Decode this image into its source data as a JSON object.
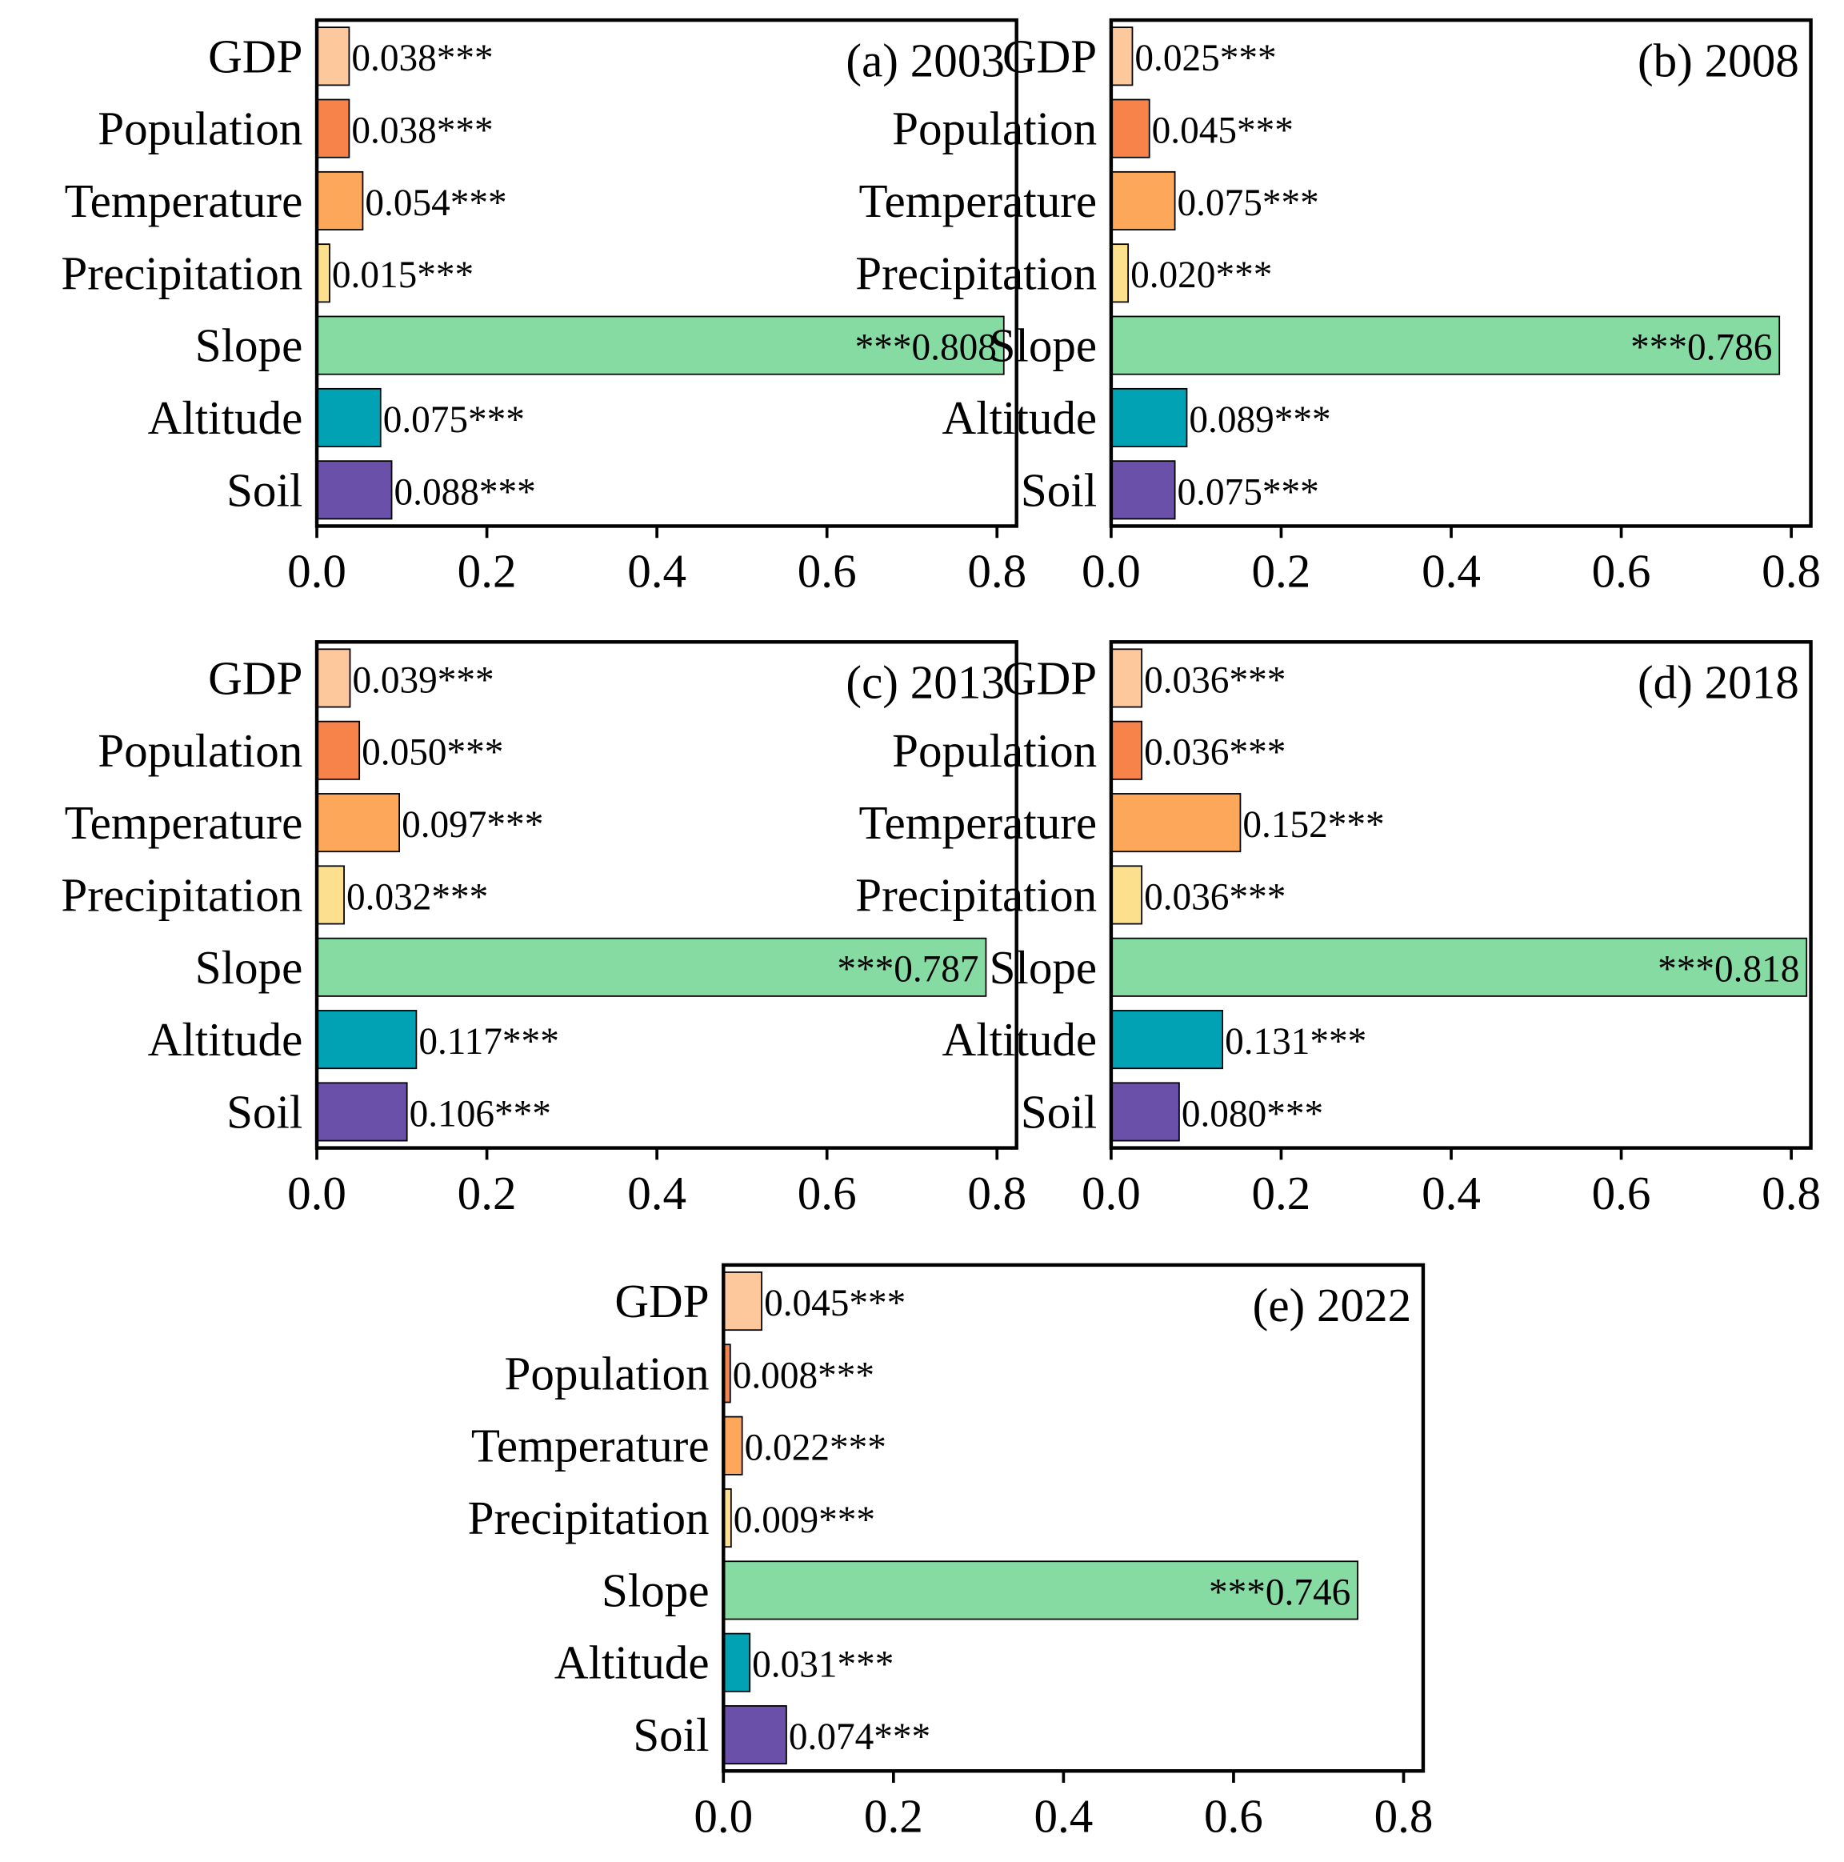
{
  "chart_data": [
    {
      "type": "bar",
      "orientation": "horizontal",
      "title": "(a) 2003",
      "categories": [
        "GDP",
        "Population",
        "Temperature",
        "Precipitation",
        "Slope",
        "Altitude",
        "Soil"
      ],
      "colors": [
        "#fdc89c",
        "#f7834a",
        "#fda75a",
        "#fde08e",
        "#86dba3",
        "#00a2b4",
        "#6a50a8"
      ],
      "values": [
        0.038,
        0.038,
        0.054,
        0.015,
        0.808,
        0.075,
        0.088
      ],
      "value_labels": [
        "0.038***",
        "0.038***",
        "0.054***",
        "0.015***",
        "***0.808",
        "0.075***",
        "0.088***"
      ],
      "xlim": [
        0,
        0.823
      ],
      "xticks": [
        {
          "value": 0,
          "label": "0.0"
        },
        0.2,
        0.4,
        0.6,
        0.8
      ]
    },
    {
      "type": "bar",
      "orientation": "horizontal",
      "title": "(b) 2008",
      "categories": [
        "GDP",
        "Population",
        "Temperature",
        "Precipitation",
        "Slope",
        "Altitude",
        "Soil"
      ],
      "colors": [
        "#fdc89c",
        "#f7834a",
        "#fda75a",
        "#fde08e",
        "#86dba3",
        "#00a2b4",
        "#6a50a8"
      ],
      "values": [
        0.025,
        0.045,
        0.075,
        0.02,
        0.786,
        0.089,
        0.075
      ],
      "value_labels": [
        "0.025***",
        "0.045***",
        "0.075***",
        "0.020***",
        "***0.786",
        "0.089***",
        "0.075***"
      ],
      "xlim": [
        0,
        0.823
      ],
      "xticks": [
        {
          "value": 0,
          "label": "0.0"
        },
        0.2,
        0.4,
        0.6,
        0.8
      ]
    },
    {
      "type": "bar",
      "orientation": "horizontal",
      "title": "(c) 2013",
      "categories": [
        "GDP",
        "Population",
        "Temperature",
        "Precipitation",
        "Slope",
        "Altitude",
        "Soil"
      ],
      "colors": [
        "#fdc89c",
        "#f7834a",
        "#fda75a",
        "#fde08e",
        "#86dba3",
        "#00a2b4",
        "#6a50a8"
      ],
      "values": [
        0.039,
        0.05,
        0.097,
        0.032,
        0.787,
        0.117,
        0.106
      ],
      "value_labels": [
        "0.039***",
        "0.050***",
        "0.097***",
        "0.032***",
        "***0.787",
        "0.117***",
        "0.106***"
      ],
      "xlim": [
        0,
        0.823
      ],
      "xticks": [
        {
          "value": 0,
          "label": "0.0"
        },
        0.2,
        0.4,
        0.6,
        0.8
      ]
    },
    {
      "type": "bar",
      "orientation": "horizontal",
      "title": "(d) 2018",
      "categories": [
        "GDP",
        "Population",
        "Temperature",
        "Precipitation",
        "Slope",
        "Altitude",
        "Soil"
      ],
      "colors": [
        "#fdc89c",
        "#f7834a",
        "#fda75a",
        "#fde08e",
        "#86dba3",
        "#00a2b4",
        "#6a50a8"
      ],
      "values": [
        0.036,
        0.036,
        0.152,
        0.036,
        0.818,
        0.131,
        0.08
      ],
      "value_labels": [
        "0.036***",
        "0.036***",
        "0.152***",
        "0.036***",
        "***0.818",
        "0.131***",
        "0.080***"
      ],
      "xlim": [
        0,
        0.823
      ],
      "xticks": [
        {
          "value": 0,
          "label": "0.0"
        },
        0.2,
        0.4,
        0.6,
        0.8
      ]
    },
    {
      "type": "bar",
      "orientation": "horizontal",
      "title": "(e) 2022",
      "categories": [
        "GDP",
        "Population",
        "Temperature",
        "Precipitation",
        "Slope",
        "Altitude",
        "Soil"
      ],
      "colors": [
        "#fdc89c",
        "#f7834a",
        "#fda75a",
        "#fde08e",
        "#86dba3",
        "#00a2b4",
        "#6a50a8"
      ],
      "values": [
        0.045,
        0.008,
        0.022,
        0.009,
        0.746,
        0.031,
        0.074
      ],
      "value_labels": [
        "0.045***",
        "0.008***",
        "0.022***",
        "0.009***",
        "***0.746",
        "0.031***",
        "0.074***"
      ],
      "xlim": [
        0,
        0.823
      ],
      "xticks": [
        {
          "value": 0,
          "label": "0.0"
        },
        0.2,
        0.4,
        0.6,
        0.8
      ]
    }
  ]
}
